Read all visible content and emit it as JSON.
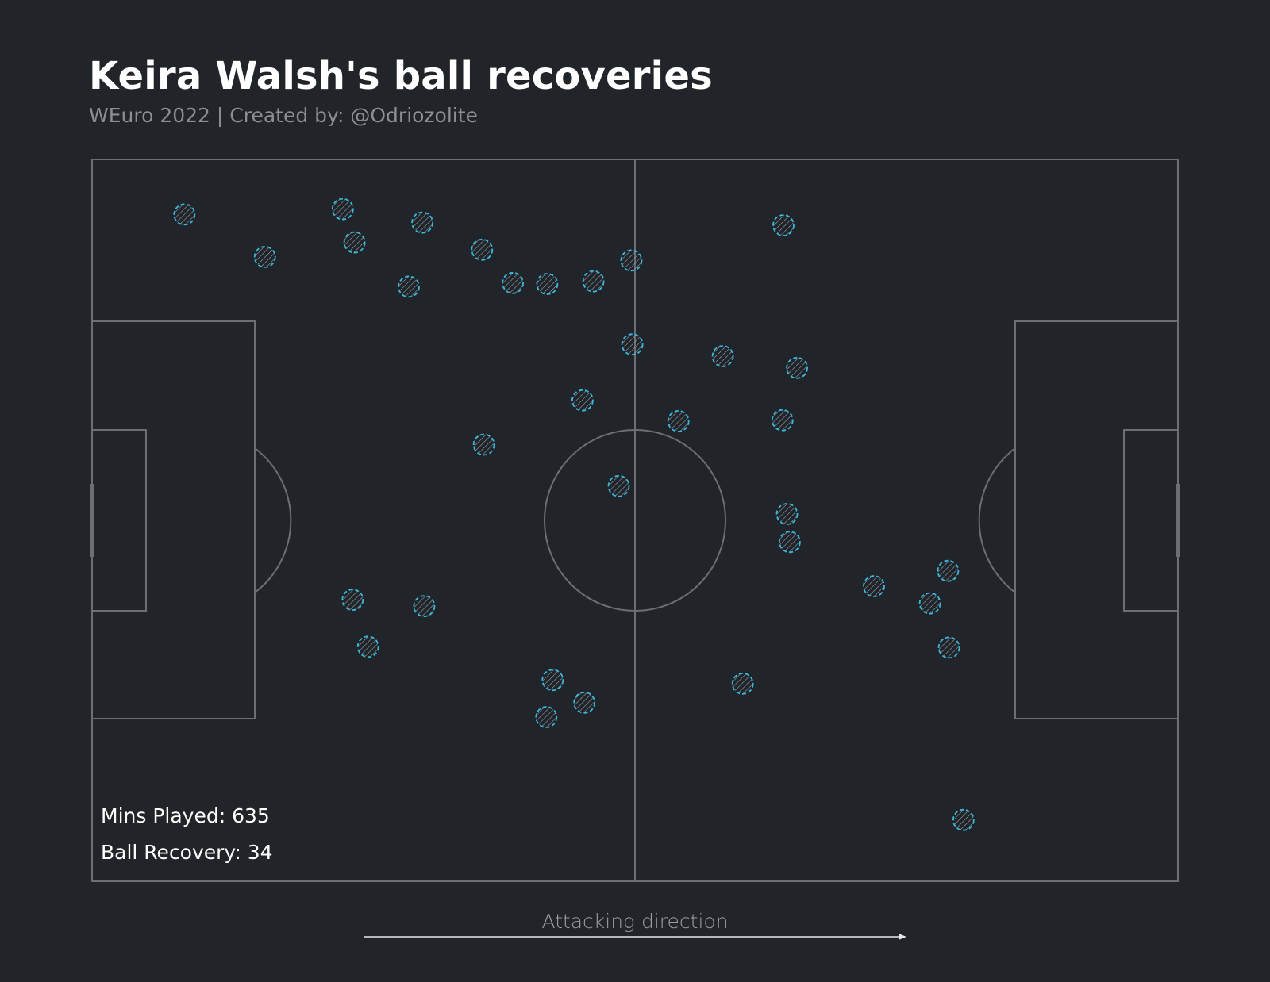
{
  "header": {
    "title": "Keira Walsh's ball recoveries",
    "subtitle": "WEuro 2022 | Created by: @Odriozolite"
  },
  "stats": {
    "mins_played": "Mins Played: 635",
    "ball_recovery": "Ball Recovery: 34"
  },
  "footer": {
    "direction_label": "Attacking direction"
  },
  "colors": {
    "background": "#212429",
    "pitch_lines": "#6b6e73",
    "marker_edge": "#3ab7dc",
    "marker_hatch": "#8fa7b0"
  },
  "chart_data": {
    "type": "scatter",
    "pitch": "statsbomb",
    "xlim": [
      0,
      120
    ],
    "ylim": [
      0,
      80
    ],
    "attacking_direction": "left-to-right",
    "points": [
      {
        "x": 10.2,
        "y": 6.1
      },
      {
        "x": 19.1,
        "y": 10.8
      },
      {
        "x": 27.7,
        "y": 5.5
      },
      {
        "x": 29.0,
        "y": 9.2
      },
      {
        "x": 35.0,
        "y": 14.1
      },
      {
        "x": 36.5,
        "y": 7.0
      },
      {
        "x": 43.1,
        "y": 10.0
      },
      {
        "x": 46.5,
        "y": 13.7
      },
      {
        "x": 50.3,
        "y": 13.8
      },
      {
        "x": 55.4,
        "y": 13.5
      },
      {
        "x": 59.6,
        "y": 11.2
      },
      {
        "x": 76.4,
        "y": 7.3
      },
      {
        "x": 59.7,
        "y": 20.5
      },
      {
        "x": 69.7,
        "y": 21.8
      },
      {
        "x": 77.9,
        "y": 23.1
      },
      {
        "x": 54.2,
        "y": 26.7
      },
      {
        "x": 64.8,
        "y": 29.0
      },
      {
        "x": 76.3,
        "y": 28.9
      },
      {
        "x": 43.3,
        "y": 31.6
      },
      {
        "x": 58.2,
        "y": 36.2
      },
      {
        "x": 76.8,
        "y": 39.3
      },
      {
        "x": 77.1,
        "y": 42.4
      },
      {
        "x": 86.4,
        "y": 47.3
      },
      {
        "x": 94.6,
        "y": 45.6
      },
      {
        "x": 92.6,
        "y": 49.2
      },
      {
        "x": 94.7,
        "y": 54.1
      },
      {
        "x": 28.8,
        "y": 48.8
      },
      {
        "x": 36.7,
        "y": 49.5
      },
      {
        "x": 30.5,
        "y": 54.0
      },
      {
        "x": 50.9,
        "y": 57.7
      },
      {
        "x": 54.4,
        "y": 60.2
      },
      {
        "x": 50.2,
        "y": 61.8
      },
      {
        "x": 71.9,
        "y": 58.1
      },
      {
        "x": 96.3,
        "y": 73.2
      }
    ]
  }
}
